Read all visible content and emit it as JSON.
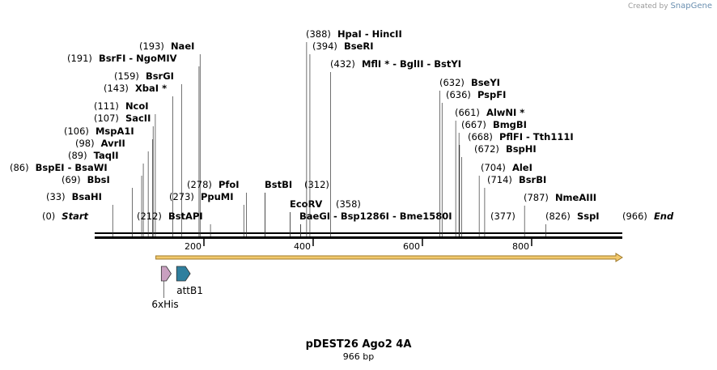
{
  "credit": {
    "prefix": "Created by",
    "brand": "SnapGene"
  },
  "plasmid": {
    "name": "pDEST26 Ago2 4A",
    "length_label": "966 bp",
    "length": 966
  },
  "ruler_ticks": [
    {
      "pos": 200,
      "label": "200"
    },
    {
      "pos": 400,
      "label": "400"
    },
    {
      "pos": 600,
      "label": "600"
    },
    {
      "pos": 800,
      "label": "800"
    }
  ],
  "sites": [
    {
      "num": "(0)",
      "name": "Start",
      "pos": 0,
      "style": "italic"
    },
    {
      "num": "(33)",
      "name": "BsaHI",
      "pos": 33
    },
    {
      "num": "(69)",
      "name": "BbsI",
      "pos": 69
    },
    {
      "num": "(86)",
      "name": "BspEI  -  BsaWI",
      "pos": 86
    },
    {
      "num": "(89)",
      "name": "TaqII",
      "pos": 89
    },
    {
      "num": "(98)",
      "name": "AvrII",
      "pos": 98
    },
    {
      "num": "(106)",
      "name": "MspA1I",
      "pos": 106
    },
    {
      "num": "(107)",
      "name": "SacII",
      "pos": 107
    },
    {
      "num": "(111)",
      "name": "NcoI",
      "pos": 111
    },
    {
      "num": "(143)",
      "name": "XbaI *",
      "pos": 143
    },
    {
      "num": "(159)",
      "name": "BsrGI",
      "pos": 159
    },
    {
      "num": "(191)",
      "name": "BsrFI  -  NgoMIV",
      "pos": 191
    },
    {
      "num": "(193)",
      "name": "NaeI",
      "pos": 193
    },
    {
      "num": "(212)",
      "name": "BstAPI",
      "pos": 212
    },
    {
      "num": "(273)",
      "name": "PpuMI",
      "pos": 273
    },
    {
      "num": "(278)",
      "name": "PfoI",
      "pos": 278
    },
    {
      "num": "",
      "name": "BstBI",
      "pos": 312
    },
    {
      "num": "(312)",
      "name": "",
      "pos": 312
    },
    {
      "num": "",
      "name": "EcoRV",
      "pos": 358
    },
    {
      "num": "(358)",
      "name": "",
      "pos": 358
    },
    {
      "num": "",
      "name": "BaeGI  -  Bsp1286I  -  Bme1580I",
      "pos": 377
    },
    {
      "num": "(377)",
      "name": "",
      "pos": 377
    },
    {
      "num": "(388)",
      "name": "HpaI  -  HincII",
      "pos": 388
    },
    {
      "num": "(394)",
      "name": "BseRI",
      "pos": 394
    },
    {
      "num": "(432)",
      "name": "MflI *  -  BglII  -  BstYI",
      "pos": 432
    },
    {
      "num": "(632)",
      "name": "BseYI",
      "pos": 632
    },
    {
      "num": "(636)",
      "name": "PspFI",
      "pos": 636
    },
    {
      "num": "(661)",
      "name": "AlwNI *",
      "pos": 661
    },
    {
      "num": "(667)",
      "name": "BmgBI",
      "pos": 667
    },
    {
      "num": "(668)",
      "name": "PflFI  -  Tth111I",
      "pos": 668
    },
    {
      "num": "(672)",
      "name": "BspHI",
      "pos": 672
    },
    {
      "num": "(704)",
      "name": "AleI",
      "pos": 704
    },
    {
      "num": "(714)",
      "name": "BsrBI",
      "pos": 714
    },
    {
      "num": "(787)",
      "name": "NmeAIII",
      "pos": 787
    },
    {
      "num": "(826)",
      "name": "SspI",
      "pos": 826
    },
    {
      "num": "(966)",
      "name": "End",
      "pos": 966,
      "style": "italic"
    }
  ],
  "features": [
    {
      "name": "6xHis",
      "label": "6xHis",
      "start": 122,
      "end": 140,
      "color": "#c9a0c0",
      "type": "arrow"
    },
    {
      "name": "attB1",
      "label": "attB1",
      "start": 150,
      "end": 175,
      "color": "#2f7f9e",
      "type": "arrow"
    },
    {
      "name": "orf",
      "label": "",
      "start": 112,
      "end": 966,
      "color": "#e8b54a",
      "type": "orf"
    }
  ],
  "colors": {
    "backbone": "#000000",
    "orf": "#f2c96d",
    "orf_edge": "#a07a2a"
  }
}
